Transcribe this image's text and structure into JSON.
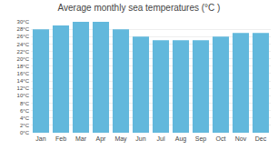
{
  "chart_data": {
    "type": "bar",
    "title": "Average monthly sea temperatures (°C )",
    "categories": [
      "Jan",
      "Feb",
      "Mar",
      "Apr",
      "May",
      "Jun",
      "Jul",
      "Aug",
      "Sep",
      "Oct",
      "Nov",
      "Dec"
    ],
    "values": [
      28,
      29,
      30,
      30,
      28,
      26,
      25,
      25,
      25,
      26,
      27,
      27
    ],
    "color": "#62b8dc",
    "ylim": [
      0,
      30
    ],
    "yticks": [
      {
        "value": 0,
        "label": "0°C"
      },
      {
        "value": 2,
        "label": "2°C"
      },
      {
        "value": 4,
        "label": "4°C"
      },
      {
        "value": 6,
        "label": "6°C"
      },
      {
        "value": 8,
        "label": "8°C"
      },
      {
        "value": 10,
        "label": "10°C"
      },
      {
        "value": 12,
        "label": "12°C"
      },
      {
        "value": 14,
        "label": "14°C"
      },
      {
        "value": 16,
        "label": "16°C"
      },
      {
        "value": 18,
        "label": "18°C"
      },
      {
        "value": 20,
        "label": "20°C"
      },
      {
        "value": 22,
        "label": "22°C"
      },
      {
        "value": 24,
        "label": "24°C"
      },
      {
        "value": 26,
        "label": "26°C"
      },
      {
        "value": 28,
        "label": "28°C"
      },
      {
        "value": 30,
        "label": "30°C"
      }
    ],
    "grid": true
  }
}
